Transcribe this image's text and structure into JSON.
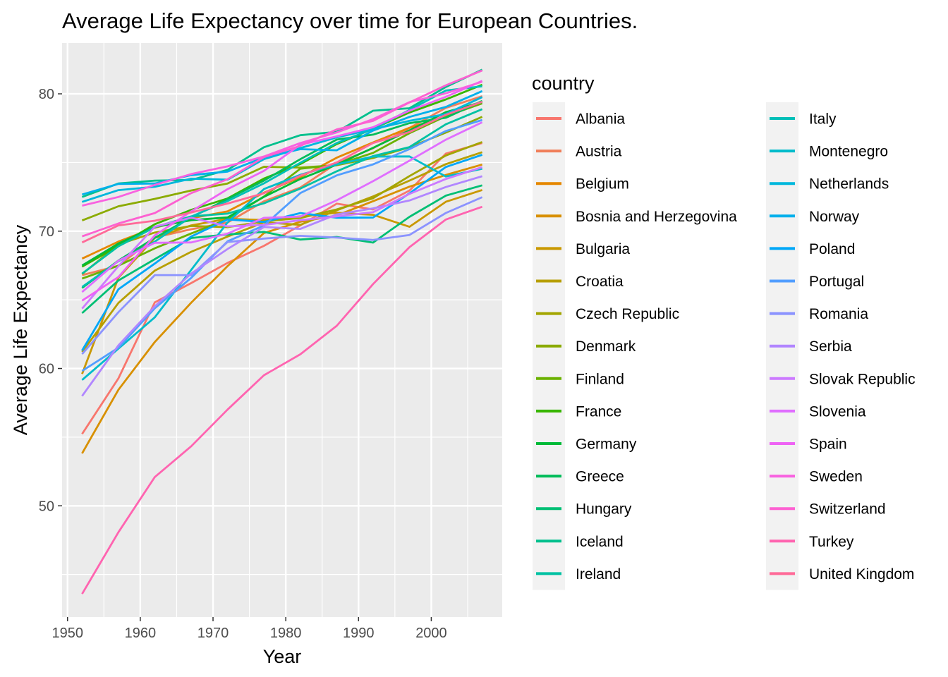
{
  "chart_data": {
    "type": "line",
    "title": "Average Life Expectancy over time for European Countries.",
    "xlabel": "Year",
    "ylabel": "Average Life Expectancy",
    "xlim": [
      1949.25,
      2009.75
    ],
    "ylim": [
      41.9,
      83.7
    ],
    "xticks": [
      1950,
      1960,
      1970,
      1980,
      1990,
      2000
    ],
    "yticks": [
      50,
      60,
      70,
      80
    ],
    "grid": true,
    "legend_title": "country",
    "legend_position": "right",
    "x": [
      1952,
      1957,
      1962,
      1967,
      1972,
      1977,
      1982,
      1987,
      1992,
      1997,
      2002,
      2007
    ],
    "series": [
      {
        "name": "Albania",
        "color": "#F8766D",
        "values": [
          55.23,
          59.28,
          64.82,
          66.22,
          67.69,
          68.93,
          70.42,
          72.0,
          71.58,
          72.95,
          75.65,
          76.42
        ]
      },
      {
        "name": "Austria",
        "color": "#F07F5A",
        "values": [
          66.8,
          67.48,
          69.54,
          70.14,
          70.63,
          72.17,
          73.18,
          74.94,
          76.04,
          77.51,
          78.98,
          79.83
        ]
      },
      {
        "name": "Belgium",
        "color": "#E58700",
        "values": [
          68.0,
          69.24,
          70.25,
          70.94,
          71.44,
          72.8,
          73.93,
          75.35,
          76.46,
          77.53,
          78.32,
          79.44
        ]
      },
      {
        "name": "Bosnia and Herzegovina",
        "color": "#D89000",
        "values": [
          53.82,
          58.45,
          61.93,
          64.79,
          67.45,
          69.86,
          70.69,
          71.14,
          72.18,
          73.24,
          74.09,
          74.85
        ]
      },
      {
        "name": "Bulgaria",
        "color": "#C99800",
        "values": [
          59.6,
          66.61,
          69.51,
          70.42,
          70.9,
          70.81,
          71.08,
          71.34,
          71.19,
          70.32,
          72.14,
          73.0
        ]
      },
      {
        "name": "Croatia",
        "color": "#B79F00",
        "values": [
          61.21,
          64.77,
          67.13,
          68.5,
          69.61,
          70.64,
          70.46,
          71.52,
          72.53,
          73.68,
          74.88,
          75.75
        ]
      },
      {
        "name": "Czech Republic",
        "color": "#A3A500",
        "values": [
          66.87,
          69.03,
          69.9,
          70.38,
          70.29,
          70.71,
          70.96,
          71.58,
          72.4,
          74.01,
          75.51,
          76.49
        ]
      },
      {
        "name": "Denmark",
        "color": "#8BAB00",
        "values": [
          70.78,
          71.81,
          72.35,
          72.96,
          73.47,
          74.69,
          74.63,
          74.8,
          75.33,
          76.11,
          77.18,
          78.33
        ]
      },
      {
        "name": "Finland",
        "color": "#6BB100",
        "values": [
          66.55,
          67.49,
          68.75,
          69.83,
          70.87,
          72.52,
          74.55,
          74.83,
          75.7,
          77.13,
          78.37,
          79.31
        ]
      },
      {
        "name": "France",
        "color": "#39B600",
        "values": [
          67.41,
          68.93,
          70.51,
          71.55,
          72.38,
          73.83,
          74.89,
          76.34,
          77.46,
          78.64,
          79.59,
          80.66
        ]
      },
      {
        "name": "Germany",
        "color": "#00BA38",
        "values": [
          67.5,
          69.1,
          70.3,
          70.8,
          71.0,
          72.5,
          73.8,
          74.847,
          76.07,
          77.34,
          78.67,
          79.406
        ]
      },
      {
        "name": "Greece",
        "color": "#00BC59",
        "values": [
          65.86,
          67.86,
          69.51,
          71.0,
          72.34,
          73.68,
          75.24,
          76.67,
          77.03,
          77.869,
          78.256,
          79.483
        ]
      },
      {
        "name": "Hungary",
        "color": "#00BF74",
        "values": [
          64.03,
          66.41,
          67.96,
          69.5,
          69.76,
          69.95,
          69.39,
          69.58,
          69.17,
          71.04,
          72.59,
          73.338
        ]
      },
      {
        "name": "Iceland",
        "color": "#00C08D",
        "values": [
          72.49,
          73.47,
          73.68,
          73.73,
          74.46,
          76.11,
          76.99,
          77.23,
          78.77,
          78.95,
          80.5,
          81.757
        ]
      },
      {
        "name": "Ireland",
        "color": "#00C1A3",
        "values": [
          66.91,
          68.9,
          70.29,
          71.08,
          71.28,
          72.03,
          73.1,
          74.36,
          75.467,
          76.122,
          77.783,
          78.885
        ]
      },
      {
        "name": "Italy",
        "color": "#00BFB8",
        "values": [
          65.94,
          67.81,
          69.24,
          71.06,
          72.19,
          73.48,
          74.98,
          76.42,
          77.44,
          78.82,
          80.24,
          80.546
        ]
      },
      {
        "name": "Montenegro",
        "color": "#00BCCB",
        "values": [
          59.164,
          61.448,
          63.728,
          67.178,
          70.636,
          73.066,
          74.101,
          74.865,
          75.435,
          75.445,
          73.981,
          74.543
        ]
      },
      {
        "name": "Netherlands",
        "color": "#00B7DC",
        "values": [
          72.13,
          72.99,
          73.23,
          73.82,
          73.75,
          75.24,
          76.05,
          76.83,
          77.42,
          78.03,
          78.53,
          79.762
        ]
      },
      {
        "name": "Norway",
        "color": "#00B0EB",
        "values": [
          72.67,
          73.44,
          73.47,
          74.08,
          74.34,
          75.37,
          75.97,
          75.89,
          77.32,
          78.32,
          79.05,
          80.196
        ]
      },
      {
        "name": "Poland",
        "color": "#00A7F8",
        "values": [
          61.31,
          65.77,
          67.64,
          69.61,
          70.85,
          70.67,
          71.32,
          70.98,
          70.99,
          72.75,
          74.67,
          75.563
        ]
      },
      {
        "name": "Portugal",
        "color": "#529EFF",
        "values": [
          59.82,
          61.51,
          64.39,
          66.6,
          69.26,
          70.41,
          72.77,
          74.06,
          74.86,
          75.97,
          77.29,
          78.098
        ]
      },
      {
        "name": "Romania",
        "color": "#8B93FF",
        "values": [
          61.05,
          64.1,
          66.8,
          66.8,
          69.21,
          69.46,
          69.66,
          69.53,
          69.36,
          69.72,
          71.322,
          72.476
        ]
      },
      {
        "name": "Serbia",
        "color": "#B186FF",
        "values": [
          57.996,
          61.685,
          64.531,
          66.914,
          68.7,
          70.3,
          70.162,
          71.218,
          71.659,
          72.232,
          73.213,
          74.002
        ]
      },
      {
        "name": "Slovak Republic",
        "color": "#CC7AFF",
        "values": [
          64.36,
          67.45,
          70.33,
          70.98,
          70.35,
          70.45,
          70.8,
          71.08,
          71.38,
          72.71,
          73.8,
          74.663
        ]
      },
      {
        "name": "Slovenia",
        "color": "#E06EFF",
        "values": [
          65.57,
          67.85,
          69.15,
          69.18,
          69.82,
          70.97,
          71.063,
          72.25,
          73.64,
          75.13,
          76.66,
          77.926
        ]
      },
      {
        "name": "Spain",
        "color": "#EE63F4",
        "values": [
          64.94,
          66.66,
          69.69,
          71.44,
          73.06,
          74.39,
          76.3,
          76.9,
          77.57,
          78.77,
          79.78,
          80.941
        ]
      },
      {
        "name": "Sweden",
        "color": "#F862E0",
        "values": [
          71.86,
          72.49,
          73.37,
          74.16,
          74.72,
          75.44,
          76.42,
          77.19,
          78.16,
          79.39,
          80.04,
          80.884
        ]
      },
      {
        "name": "Switzerland",
        "color": "#FD61D1",
        "values": [
          69.62,
          70.56,
          71.32,
          72.77,
          73.78,
          75.39,
          76.21,
          77.41,
          78.03,
          79.37,
          80.62,
          81.701
        ]
      },
      {
        "name": "Turkey",
        "color": "#FF64B0",
        "values": [
          43.585,
          48.079,
          52.098,
          54.336,
          57.005,
          59.507,
          61.036,
          63.108,
          66.146,
          68.835,
          70.845,
          71.777
        ]
      },
      {
        "name": "United Kingdom",
        "color": "#FF6A98",
        "values": [
          69.18,
          70.42,
          70.76,
          71.36,
          72.01,
          72.76,
          74.04,
          75.007,
          76.42,
          77.218,
          78.471,
          79.425
        ]
      }
    ]
  }
}
